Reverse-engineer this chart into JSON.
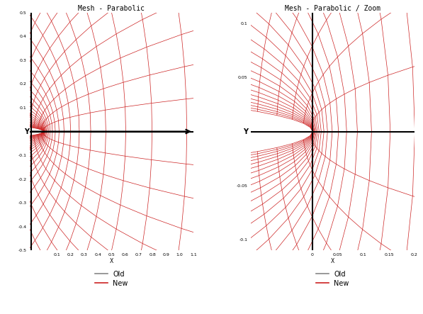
{
  "title_left": "Mesh - Parabolic",
  "title_right": "Mesh - Parabolic / Zoom",
  "xlabel": "X",
  "mesh_color": "#cc2222",
  "old_color": "#888888",
  "bg_color": "#ffffff",
  "left_xlim": [
    -0.1,
    1.1
  ],
  "left_ylim": [
    -0.5,
    0.5
  ],
  "right_xlim": [
    -0.12,
    0.2
  ],
  "right_ylim": [
    -0.11,
    0.11
  ],
  "title_fontsize": 7,
  "tick_fontsize": 5.5,
  "legend_fontsize": 7
}
